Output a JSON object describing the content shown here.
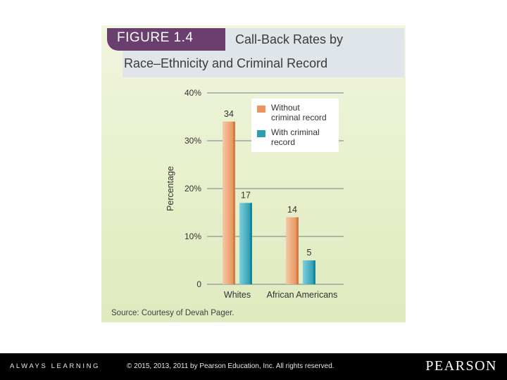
{
  "figure": {
    "label": "FIGURE 1.4",
    "title_line1": "Call-Back Rates by",
    "title_line2": "Race–Ethnicity and Criminal Record"
  },
  "chart_data": {
    "type": "bar",
    "categories": [
      "Whites",
      "African Americans"
    ],
    "series": [
      {
        "name": "Without criminal record",
        "values": [
          34,
          14
        ]
      },
      {
        "name": "With criminal record",
        "values": [
          17,
          5
        ]
      }
    ],
    "ylabel": "Percentage",
    "ylim": [
      0,
      40
    ],
    "yticks": [
      0,
      10,
      20,
      30,
      40
    ],
    "ytick_labels": [
      "0",
      "10%",
      "20%",
      "30%",
      "40%"
    ],
    "data_labels": [
      [
        "34",
        "14"
      ],
      [
        "17",
        "5"
      ]
    ],
    "legend": {
      "entries": [
        [
          "Without",
          "criminal record"
        ],
        [
          "With criminal",
          "record"
        ]
      ],
      "placement": "top-right"
    },
    "grid": true,
    "colors": [
      "#e9975e",
      "#2a9fb3"
    ]
  },
  "source": "Source: Courtesy of Devah Pager.",
  "footer": {
    "tagline": "ALWAYS LEARNING",
    "copyright": "© 2015, 2013, 2011 by Pearson Education, Inc. All rights reserved.",
    "brand": "PEARSON"
  }
}
